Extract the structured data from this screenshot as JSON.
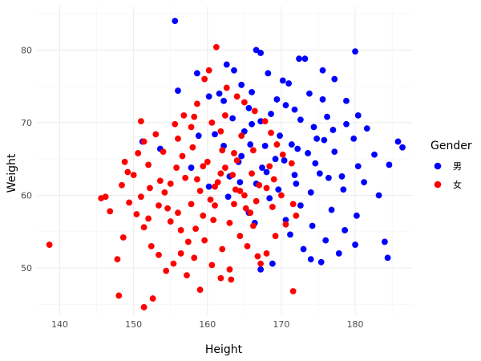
{
  "chart_data": {
    "type": "scatter",
    "title": "",
    "xlabel": "Height",
    "ylabel": "Weight",
    "xlim": [
      136.9,
      187.7
    ],
    "ylim": [
      43.6,
      86.0
    ],
    "xticks": [
      140,
      150,
      160,
      170,
      180
    ],
    "yticks": [
      50,
      60,
      70,
      80
    ],
    "grid": true,
    "legend": {
      "title": "Gender",
      "position": "right"
    },
    "series": [
      {
        "name": "男",
        "color": "#0000ff",
        "points": [
          [
            155.6,
            84.0
          ],
          [
            180.0,
            79.8
          ],
          [
            166.6,
            80.0
          ],
          [
            167.2,
            79.6
          ],
          [
            172.4,
            78.8
          ],
          [
            173.2,
            78.8
          ],
          [
            162.6,
            78.0
          ],
          [
            158.6,
            76.8
          ],
          [
            163.6,
            77.2
          ],
          [
            168.2,
            76.8
          ],
          [
            175.6,
            77.2
          ],
          [
            170.2,
            75.8
          ],
          [
            171.0,
            75.4
          ],
          [
            177.2,
            76.0
          ],
          [
            164.6,
            75.2
          ],
          [
            161.6,
            74.0
          ],
          [
            166.0,
            74.2
          ],
          [
            173.8,
            74.0
          ],
          [
            156.0,
            74.4
          ],
          [
            160.2,
            73.6
          ],
          [
            162.2,
            73.0
          ],
          [
            169.4,
            73.2
          ],
          [
            175.6,
            73.2
          ],
          [
            178.8,
            73.0
          ],
          [
            165.6,
            72.0
          ],
          [
            171.8,
            71.8
          ],
          [
            168.6,
            71.2
          ],
          [
            176.2,
            70.8
          ],
          [
            180.4,
            71.0
          ],
          [
            163.4,
            70.6
          ],
          [
            167.2,
            70.2
          ],
          [
            172.6,
            70.4
          ],
          [
            174.4,
            69.4
          ],
          [
            178.8,
            69.8
          ],
          [
            181.6,
            69.2
          ],
          [
            165.0,
            68.8
          ],
          [
            169.8,
            68.2
          ],
          [
            161.0,
            68.4
          ],
          [
            175.8,
            67.6
          ],
          [
            179.8,
            67.8
          ],
          [
            185.8,
            67.4
          ],
          [
            151.2,
            67.4
          ],
          [
            153.6,
            66.4
          ],
          [
            167.8,
            66.8
          ],
          [
            172.2,
            66.4
          ],
          [
            177.2,
            66.0
          ],
          [
            182.6,
            65.6
          ],
          [
            186.4,
            66.6
          ],
          [
            164.6,
            65.4
          ],
          [
            170.4,
            64.8
          ],
          [
            174.6,
            64.4
          ],
          [
            180.4,
            64.0
          ],
          [
            184.6,
            64.2
          ],
          [
            167.4,
            63.8
          ],
          [
            171.8,
            62.8
          ],
          [
            176.4,
            62.4
          ],
          [
            181.2,
            61.8
          ],
          [
            163.0,
            62.6
          ],
          [
            166.6,
            61.6
          ],
          [
            169.6,
            60.8
          ],
          [
            174.0,
            60.4
          ],
          [
            178.4,
            60.8
          ],
          [
            183.2,
            60.0
          ],
          [
            168.4,
            59.6
          ],
          [
            172.6,
            58.6
          ],
          [
            176.8,
            58.0
          ],
          [
            180.2,
            57.2
          ],
          [
            165.6,
            57.6
          ],
          [
            170.6,
            56.6
          ],
          [
            174.2,
            55.8
          ],
          [
            178.6,
            55.2
          ],
          [
            171.2,
            54.6
          ],
          [
            176.0,
            53.8
          ],
          [
            180.0,
            53.2
          ],
          [
            184.0,
            53.6
          ],
          [
            173.0,
            52.6
          ],
          [
            177.8,
            52.0
          ],
          [
            184.4,
            51.4
          ],
          [
            168.8,
            50.6
          ],
          [
            175.4,
            50.8
          ],
          [
            167.2,
            49.8
          ],
          [
            174.0,
            51.2
          ],
          [
            166.4,
            56.2
          ],
          [
            162.8,
            59.8
          ],
          [
            160.2,
            61.2
          ],
          [
            157.8,
            63.8
          ],
          [
            164.2,
            64.6
          ],
          [
            169.2,
            65.0
          ],
          [
            173.6,
            65.8
          ],
          [
            166.0,
            69.8
          ],
          [
            177.0,
            69.0
          ],
          [
            170.6,
            72.4
          ],
          [
            168.0,
            63.2
          ],
          [
            172.0,
            61.6
          ],
          [
            175.2,
            63.0
          ],
          [
            178.2,
            62.6
          ],
          [
            162.2,
            66.8
          ],
          [
            164.4,
            61.8
          ],
          [
            171.4,
            67.0
          ],
          [
            174.8,
            67.8
          ],
          [
            158.8,
            68.2
          ],
          [
            165.8,
            67.0
          ]
        ]
      },
      {
        "name": "女",
        "color": "#ff0000",
        "points": [
          [
            138.6,
            53.2
          ],
          [
            145.6,
            59.6
          ],
          [
            146.2,
            59.8
          ],
          [
            146.8,
            57.8
          ],
          [
            148.6,
            54.2
          ],
          [
            147.8,
            51.2
          ],
          [
            148.0,
            46.2
          ],
          [
            151.4,
            44.6
          ],
          [
            152.6,
            45.8
          ],
          [
            148.8,
            64.6
          ],
          [
            149.2,
            63.2
          ],
          [
            150.6,
            65.8
          ],
          [
            151.0,
            70.2
          ],
          [
            151.4,
            67.4
          ],
          [
            152.2,
            61.0
          ],
          [
            153.4,
            58.6
          ],
          [
            154.2,
            60.4
          ],
          [
            155.0,
            56.4
          ],
          [
            156.0,
            57.6
          ],
          [
            156.8,
            71.0
          ],
          [
            157.8,
            69.4
          ],
          [
            158.6,
            72.6
          ],
          [
            159.6,
            76.0
          ],
          [
            160.2,
            77.2
          ],
          [
            161.2,
            80.4
          ],
          [
            162.6,
            74.8
          ],
          [
            164.0,
            73.6
          ],
          [
            165.0,
            72.8
          ],
          [
            166.4,
            71.6
          ],
          [
            167.8,
            70.2
          ],
          [
            168.6,
            68.6
          ],
          [
            169.4,
            67.0
          ],
          [
            170.2,
            65.6
          ],
          [
            171.4,
            64.4
          ],
          [
            171.6,
            58.8
          ],
          [
            170.6,
            56.0
          ],
          [
            169.2,
            54.4
          ],
          [
            168.0,
            52.0
          ],
          [
            167.2,
            50.6
          ],
          [
            166.2,
            55.8
          ],
          [
            165.2,
            58.2
          ],
          [
            164.4,
            60.6
          ],
          [
            163.4,
            62.8
          ],
          [
            162.4,
            63.8
          ],
          [
            161.4,
            61.8
          ],
          [
            160.4,
            59.4
          ],
          [
            159.4,
            57.2
          ],
          [
            158.4,
            55.4
          ],
          [
            157.4,
            53.6
          ],
          [
            156.4,
            52.0
          ],
          [
            155.4,
            50.6
          ],
          [
            154.4,
            49.6
          ],
          [
            153.4,
            51.8
          ],
          [
            152.4,
            53.0
          ],
          [
            151.4,
            55.6
          ],
          [
            150.4,
            57.4
          ],
          [
            149.4,
            59.0
          ],
          [
            148.4,
            61.4
          ],
          [
            150.0,
            62.8
          ],
          [
            152.0,
            64.2
          ],
          [
            154.0,
            66.0
          ],
          [
            156.0,
            67.8
          ],
          [
            158.0,
            66.6
          ],
          [
            160.0,
            64.6
          ],
          [
            162.0,
            66.2
          ],
          [
            164.0,
            64.8
          ],
          [
            166.0,
            63.0
          ],
          [
            168.0,
            61.0
          ],
          [
            170.0,
            60.0
          ],
          [
            172.0,
            57.2
          ],
          [
            161.8,
            48.6
          ],
          [
            163.2,
            48.4
          ],
          [
            159.0,
            47.0
          ],
          [
            157.2,
            49.0
          ],
          [
            165.4,
            53.0
          ],
          [
            166.8,
            51.6
          ],
          [
            171.6,
            46.8
          ],
          [
            155.0,
            61.6
          ],
          [
            157.0,
            62.4
          ],
          [
            159.0,
            60.6
          ],
          [
            161.0,
            58.6
          ],
          [
            163.0,
            56.2
          ],
          [
            165.0,
            60.0
          ],
          [
            167.0,
            61.4
          ],
          [
            169.0,
            62.2
          ],
          [
            153.0,
            68.4
          ],
          [
            155.6,
            69.8
          ],
          [
            158.2,
            70.8
          ],
          [
            161.8,
            68.8
          ],
          [
            164.6,
            68.2
          ],
          [
            160.6,
            70.0
          ],
          [
            162.4,
            71.0
          ],
          [
            166.2,
            66.2
          ],
          [
            168.4,
            64.0
          ],
          [
            152.0,
            56.8
          ],
          [
            154.6,
            58.2
          ],
          [
            157.8,
            58.8
          ],
          [
            160.8,
            56.6
          ],
          [
            163.6,
            58.8
          ],
          [
            156.4,
            55.2
          ],
          [
            159.6,
            53.8
          ],
          [
            162.0,
            52.6
          ],
          [
            164.4,
            54.4
          ],
          [
            158.2,
            51.4
          ],
          [
            160.6,
            50.4
          ],
          [
            163.0,
            49.8
          ],
          [
            156.6,
            65.4
          ],
          [
            159.4,
            64.0
          ],
          [
            161.8,
            63.0
          ],
          [
            163.8,
            60.8
          ],
          [
            165.8,
            57.6
          ],
          [
            151.0,
            59.8
          ],
          [
            153.6,
            62.0
          ],
          [
            155.8,
            63.8
          ],
          [
            158.6,
            62.2
          ],
          [
            161.0,
            61.2
          ],
          [
            163.6,
            65.8
          ],
          [
            166.6,
            59.2
          ],
          [
            168.8,
            58.4
          ]
        ]
      }
    ]
  }
}
